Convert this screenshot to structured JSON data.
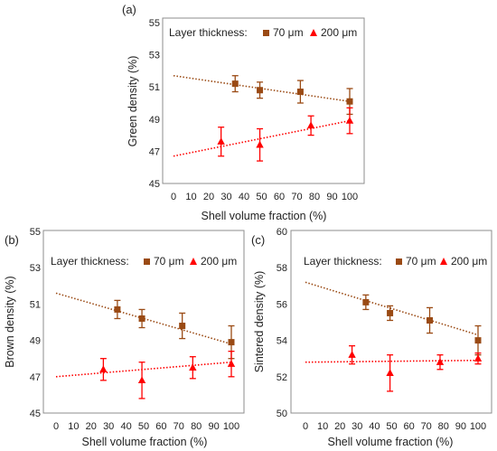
{
  "colors": {
    "series70": "#9a4a14",
    "series200": "#ff0000",
    "axis": "#8c8c8c"
  },
  "chart_data": [
    {
      "panel_label": "(a)",
      "type": "scatter",
      "xlabel": "Shell volume fraction (%)",
      "ylabel": "Green density (%)",
      "xlim": [
        0,
        100
      ],
      "ylim": [
        45,
        55
      ],
      "x_ticks": [
        "0",
        "10",
        "20",
        "30",
        "40",
        "50",
        "60",
        "70",
        "80",
        "90",
        "100"
      ],
      "y_ticks": [
        "45",
        "47",
        "49",
        "51",
        "53",
        "55"
      ],
      "legend_title": "Layer thickness:",
      "series": [
        {
          "name": "70 μm",
          "marker": "square",
          "x": [
            35,
            49,
            72,
            100
          ],
          "y": [
            51.2,
            50.8,
            50.7,
            50.1
          ],
          "err": [
            0.5,
            0.5,
            0.7,
            0.8
          ],
          "trend": [
            51.7,
            50.1
          ]
        },
        {
          "name": "200 μm",
          "marker": "triangle",
          "x": [
            27,
            49,
            78,
            100
          ],
          "y": [
            47.6,
            47.4,
            48.6,
            48.9
          ],
          "err": [
            0.9,
            1.0,
            0.6,
            0.8
          ],
          "trend": [
            46.7,
            48.9
          ]
        }
      ]
    },
    {
      "panel_label": "(b)",
      "type": "scatter",
      "xlabel": "Shell volume fraction (%)",
      "ylabel": "Brown density (%)",
      "xlim": [
        0,
        100
      ],
      "ylim": [
        45,
        55
      ],
      "x_ticks": [
        "0",
        "10",
        "20",
        "30",
        "40",
        "50",
        "60",
        "70",
        "80",
        "90",
        "100"
      ],
      "y_ticks": [
        "45",
        "47",
        "49",
        "51",
        "53",
        "55"
      ],
      "legend_title": "Layer thickness:",
      "series": [
        {
          "name": "70 μm",
          "marker": "square",
          "x": [
            35,
            49,
            72,
            100
          ],
          "y": [
            50.7,
            50.2,
            49.8,
            48.9
          ],
          "err": [
            0.5,
            0.5,
            0.7,
            0.9
          ],
          "trend": [
            51.6,
            48.8
          ]
        },
        {
          "name": "200 μm",
          "marker": "triangle",
          "x": [
            27,
            49,
            78,
            100
          ],
          "y": [
            47.4,
            46.8,
            47.5,
            47.7
          ],
          "err": [
            0.6,
            1.0,
            0.6,
            0.7
          ],
          "trend": [
            47.0,
            47.8
          ]
        }
      ]
    },
    {
      "panel_label": "(c)",
      "type": "scatter",
      "xlabel": "Shell volume fraction (%)",
      "ylabel": "Sintered density (%)",
      "xlim": [
        0,
        100
      ],
      "ylim": [
        50,
        60
      ],
      "x_ticks": [
        "0",
        "10",
        "20",
        "30",
        "40",
        "50",
        "60",
        "70",
        "80",
        "90",
        "100"
      ],
      "y_ticks": [
        "50",
        "52",
        "54",
        "56",
        "58",
        "60"
      ],
      "legend_title": "Layer thickness:",
      "series": [
        {
          "name": "70 μm",
          "marker": "square",
          "x": [
            35,
            49,
            72,
            100
          ],
          "y": [
            56.1,
            55.5,
            55.1,
            54.0
          ],
          "err": [
            0.4,
            0.4,
            0.7,
            0.8
          ],
          "trend": [
            57.2,
            54.3
          ]
        },
        {
          "name": "200 μm",
          "marker": "triangle",
          "x": [
            27,
            49,
            78,
            100
          ],
          "y": [
            53.2,
            52.2,
            52.8,
            53.0
          ],
          "err": [
            0.5,
            1.0,
            0.4,
            0.3
          ],
          "trend": [
            52.8,
            52.9
          ]
        }
      ]
    }
  ]
}
